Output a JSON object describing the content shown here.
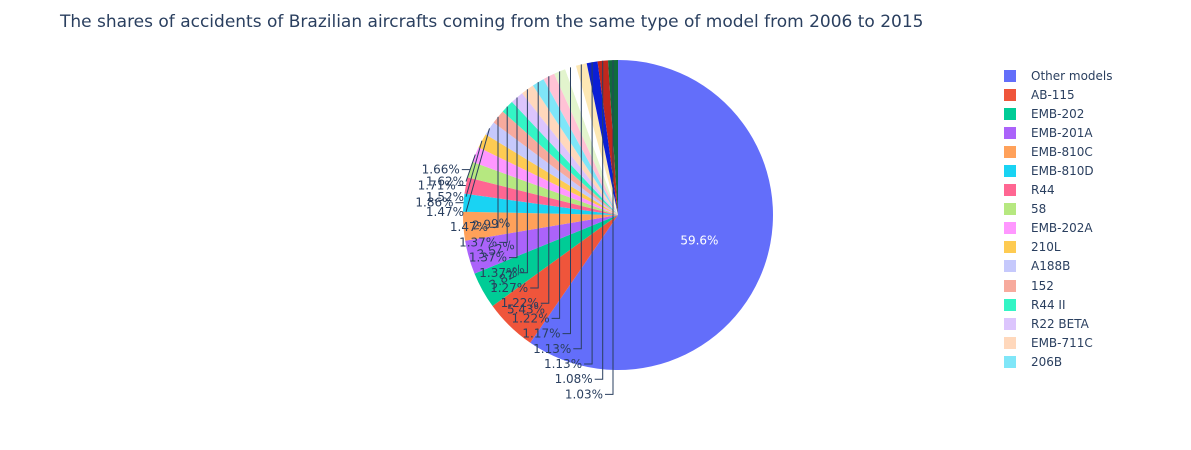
{
  "chart_data": {
    "type": "pie",
    "title": "The shares of accidents of Brazilian aircrafts coming from the same type of model from 2006 to 2015",
    "legend_position": "right",
    "slices": [
      {
        "label": "Other models",
        "value": 59.6,
        "text": "59.6%",
        "color": "#636efa",
        "legend": true
      },
      {
        "label": "AB-115",
        "value": 5.43,
        "text": "5.43%",
        "color": "#EF553B",
        "legend": true
      },
      {
        "label": "EMB-202",
        "value": 3.82,
        "text": "3.82%",
        "color": "#00cc96",
        "legend": true
      },
      {
        "label": "EMB-201A",
        "value": 3.52,
        "text": "3.52%",
        "color": "#ab63fa",
        "legend": true
      },
      {
        "label": "EMB-810C",
        "value": 2.99,
        "text": "2.99%",
        "color": "#FFA15A",
        "legend": true
      },
      {
        "label": "EMB-810D",
        "value": 1.86,
        "text": "1.86%",
        "color": "#19d3f3",
        "legend": true
      },
      {
        "label": "R44",
        "value": 1.71,
        "text": "1.71%",
        "color": "#FF6692",
        "legend": true
      },
      {
        "label": "58",
        "value": 1.66,
        "text": "1.66%",
        "color": "#B6E880",
        "legend": true
      },
      {
        "label": "EMB-202A",
        "value": 1.62,
        "text": "1.62%",
        "color": "#FF97FF",
        "legend": true
      },
      {
        "label": "210L",
        "value": 1.52,
        "text": "1.52%",
        "color": "#FECB52",
        "legend": true
      },
      {
        "label": "A188B",
        "value": 1.47,
        "text": "1.47%",
        "color": "#c6c9fc",
        "legend": true
      },
      {
        "label": "152",
        "value": 1.47,
        "text": "1.47%",
        "color": "#f7aa9d",
        "legend": true
      },
      {
        "label": "R44 II",
        "value": 1.37,
        "text": "1.37%",
        "color": "#33f5c5",
        "legend": true
      },
      {
        "label": "R22 BETA",
        "value": 1.37,
        "text": "1.37%",
        "color": "#dcc5fd",
        "legend": true
      },
      {
        "label": "EMB-711C",
        "value": 1.37,
        "text": "1.37%",
        "color": "#ffd8bc",
        "legend": true
      },
      {
        "label": "206B",
        "value": 1.27,
        "text": "1.27%",
        "color": "#7fe6f8",
        "legend": true
      },
      {
        "label": "",
        "value": 1.22,
        "text": "1.22%",
        "color": "#ffc2d5",
        "legend": false
      },
      {
        "label": "",
        "value": 1.22,
        "text": "1.22%",
        "color": "#e2f4cd",
        "legend": false
      },
      {
        "label": "",
        "value": 1.17,
        "text": "1.17%",
        "color": "#ffffff",
        "legend": false
      },
      {
        "label": "",
        "value": 1.13,
        "text": "1.13%",
        "color": "#fde8b4",
        "legend": false
      },
      {
        "label": "",
        "value": 1.13,
        "text": "1.13%",
        "color": "#0b1fd6",
        "legend": false
      },
      {
        "label": "",
        "value": 1.08,
        "text": "1.08%",
        "color": "#c0271d",
        "legend": false
      },
      {
        "label": "",
        "value": 1.03,
        "text": "1.03%",
        "color": "#0f6b3c",
        "legend": false
      }
    ]
  }
}
